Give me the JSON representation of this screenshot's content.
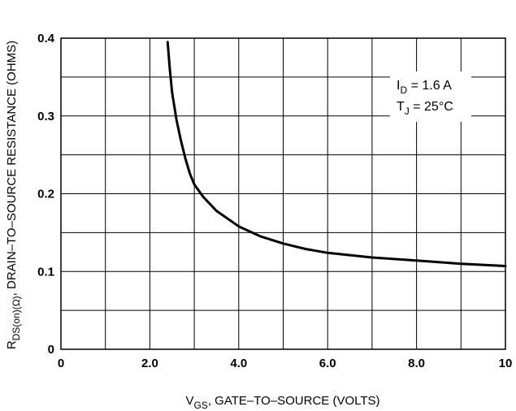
{
  "chart_data": {
    "type": "line",
    "title": "",
    "xlabel": {
      "main": "V",
      "sub": "GS",
      "rest": ", GATE–TO–SOURCE (VOLTS)"
    },
    "ylabel": {
      "main": "R",
      "sub": "DS(on)(Ω)",
      "rest": ", DRAIN–TO–SOURCE RESISTANCE (OHMS)"
    },
    "xlim": [
      0,
      10
    ],
    "ylim": [
      0,
      0.4
    ],
    "x_ticks": [
      0,
      2,
      4,
      6,
      8,
      10
    ],
    "x_tick_labels": [
      "0",
      "2.0",
      "4.0",
      "6.0",
      "8.0",
      "10"
    ],
    "y_ticks": [
      0,
      0.1,
      0.2,
      0.3,
      0.4
    ],
    "y_tick_labels": [
      "0",
      "0.1",
      "0.2",
      "0.3",
      "0.4"
    ],
    "grid": true,
    "annotations": [
      {
        "main": "I",
        "sub": "D",
        "rest": " = 1.6 A"
      },
      {
        "main": "T",
        "sub": "J",
        "rest": " = 25°C"
      }
    ],
    "series": [
      {
        "x": [
          2.4,
          2.45,
          2.5,
          2.6,
          2.7,
          2.8,
          2.9,
          3.0,
          3.2,
          3.5,
          4.0,
          4.5,
          5.0,
          5.5,
          6.0,
          7.0,
          8.0,
          9.0,
          10.0
        ],
        "y": [
          0.395,
          0.36,
          0.33,
          0.295,
          0.268,
          0.245,
          0.226,
          0.212,
          0.196,
          0.178,
          0.158,
          0.145,
          0.136,
          0.129,
          0.124,
          0.118,
          0.114,
          0.11,
          0.107
        ]
      }
    ]
  }
}
